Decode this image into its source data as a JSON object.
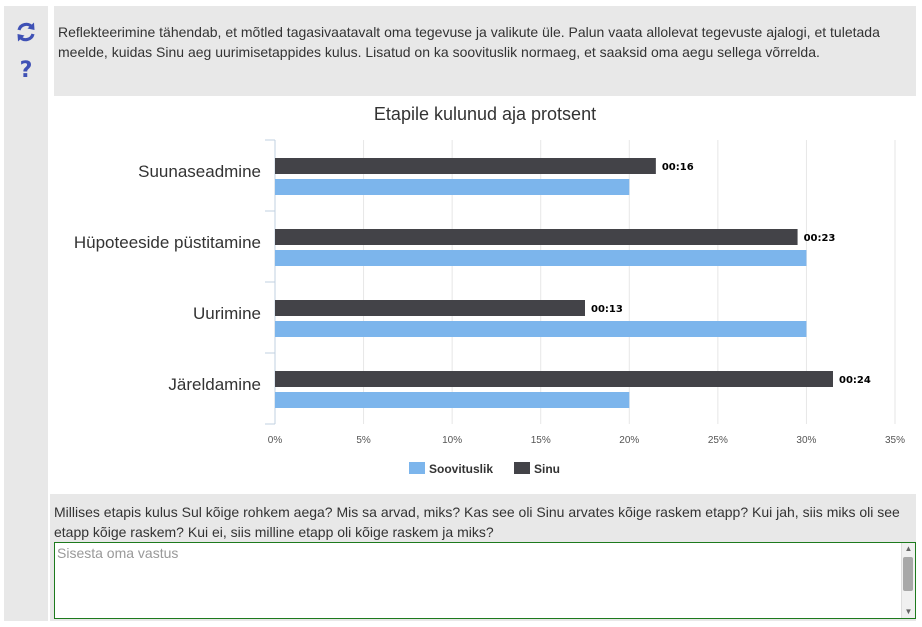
{
  "intro_text": "Reflekteerimine tähendab, et mõtled tagasivaatavalt oma tegevuse ja valikute üle. Palun vaata allolevat tegevuste ajalogi, et tuletada meelde, kuidas Sinu aeg uurimisetappides kulus. Lisatud on ka soovituslik normaeg, et saaksid oma aegu sellega võrrelda.",
  "icons": {
    "refresh": "refresh-icon",
    "help": "question-icon"
  },
  "colors": {
    "sinu": "#434348",
    "soovituslik": "#7cb5ec",
    "accent": "#3f51b5"
  },
  "chart_data": {
    "type": "bar",
    "orientation": "horizontal",
    "title": "Etapile kulunud aja protsent",
    "categories": [
      "Suunaseadmine",
      "Hüpoteeside püstitamine",
      "Uurimine",
      "Järeldamine"
    ],
    "series": [
      {
        "name": "Sinu",
        "values": [
          21.5,
          29.5,
          17.5,
          31.5
        ],
        "labels": [
          "00:16",
          "00:23",
          "00:13",
          "00:24"
        ]
      },
      {
        "name": "Soovituslik",
        "values": [
          20,
          30,
          30,
          20
        ]
      }
    ],
    "xlim": [
      0,
      35
    ],
    "xticks": [
      "0%",
      "5%",
      "10%",
      "15%",
      "20%",
      "25%",
      "30%",
      "35%"
    ],
    "legend": [
      "Soovituslik",
      "Sinu"
    ],
    "grid": true
  },
  "question_text": "Millises etapis kulus Sul kõige rohkem aega? Mis sa arvad, miks? Kas see oli Sinu arvates kõige raskem etapp? Kui jah, siis miks oli see etapp kõige raskem? Kui ei, siis milline etapp oli kõige raskem ja miks?",
  "answer": {
    "placeholder": "Sisesta oma vastus",
    "value": ""
  }
}
